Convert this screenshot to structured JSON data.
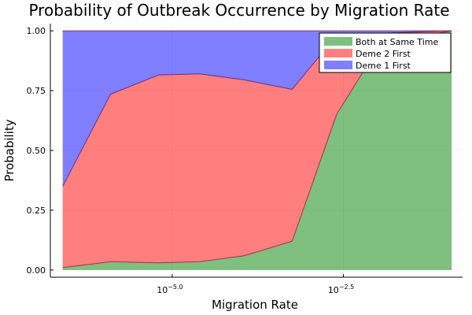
{
  "chart_data": {
    "type": "area",
    "title": "Probability of Outbreak Occurrence by Migration Rate",
    "xlabel": "Migration Rate",
    "ylabel": "Probability",
    "xscale": "log10",
    "xlim": [
      -6.78,
      -0.76
    ],
    "ylim": [
      -0.03,
      1.03
    ],
    "xticks": [
      {
        "exp": -5.0,
        "base": "10",
        "power": "−5.0"
      },
      {
        "exp": -2.5,
        "base": "10",
        "power": "−2.5"
      }
    ],
    "yticks": [
      {
        "value": 0.0,
        "label": "0.00"
      },
      {
        "value": 0.25,
        "label": "0.25"
      },
      {
        "value": 0.5,
        "label": "0.50"
      },
      {
        "value": 0.75,
        "label": "0.75"
      },
      {
        "value": 1.0,
        "label": "1.00"
      }
    ],
    "x_log10": [
      -6.6,
      -5.9,
      -5.2,
      -4.6,
      -3.95,
      -3.25,
      -2.6,
      -1.95,
      -0.92
    ],
    "series": [
      {
        "name": "Both at Same Time",
        "color": "#008000",
        "values": [
          0.01,
          0.035,
          0.03,
          0.035,
          0.06,
          0.12,
          0.65,
          0.95,
          1.0
        ]
      },
      {
        "name": "Deme 2 First",
        "color": "#ff0000",
        "values": [
          0.34,
          0.7,
          0.785,
          0.785,
          0.735,
          0.635,
          0.33,
          0.04,
          0.0
        ]
      },
      {
        "name": "Deme 1 First",
        "color": "#0000ff",
        "values": [
          0.65,
          0.265,
          0.185,
          0.18,
          0.205,
          0.245,
          0.02,
          0.01,
          0.0
        ]
      }
    ],
    "legend_position": "top-right",
    "grid": true
  }
}
